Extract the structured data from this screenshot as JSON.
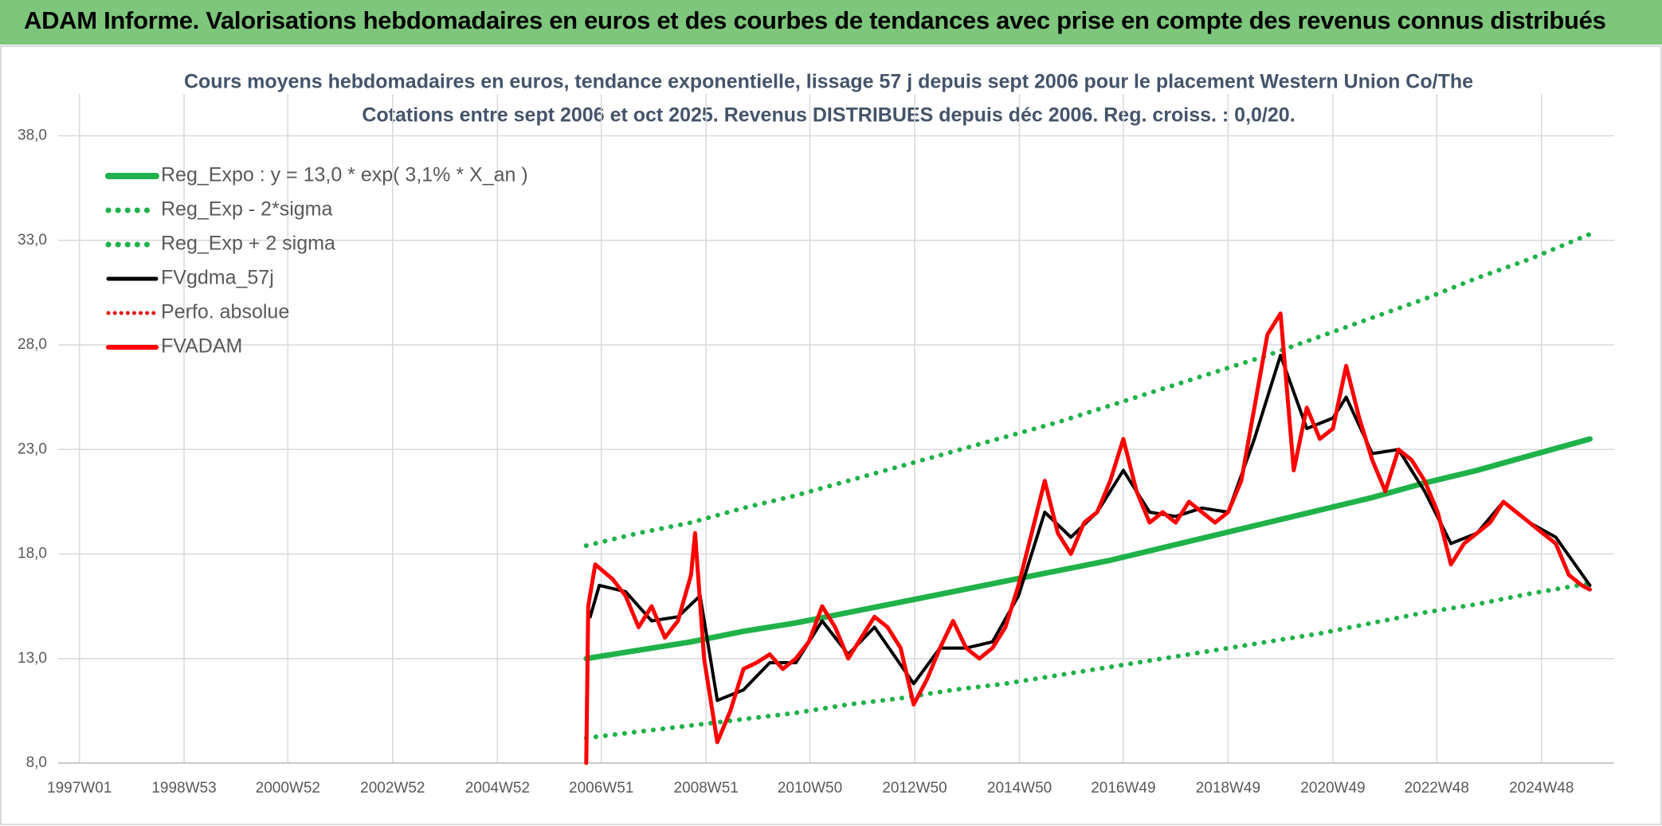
{
  "header": {
    "title": "ADAM Informe. Valorisations hebdomadaires en euros et des courbes de tendances avec prise en compte des revenus connus distribués"
  },
  "chart_data": {
    "type": "line",
    "title": "Cours moyens hebdomadaires en euros, tendance exponentielle, lissage 57 j depuis sept 2006 pour le placement Western Union Co/The",
    "subtitle": "Cotations entre sept 2006 et oct 2025. Revenus DISTRIBUES depuis déc 2006. Reg. croiss. : 0,0/20.",
    "xlim": [
      "1996W32",
      "2026W16"
    ],
    "xticks": [
      "1997W01",
      "1998W53",
      "2000W52",
      "2002W52",
      "2004W52",
      "2006W51",
      "2008W51",
      "2010W50",
      "2012W50",
      "2014W50",
      "2016W49",
      "2018W49",
      "2020W49",
      "2022W48",
      "2024W48"
    ],
    "ylim": [
      8,
      40
    ],
    "yticks": [
      {
        "value": 8,
        "label": "8,0"
      },
      {
        "value": 13,
        "label": "13,0"
      },
      {
        "value": 18,
        "label": "18,0"
      },
      {
        "value": 23,
        "label": "23,0"
      },
      {
        "value": 28,
        "label": "28,0"
      },
      {
        "value": 33,
        "label": "33,0"
      },
      {
        "value": 38,
        "label": "38,0"
      }
    ],
    "grid": true,
    "legend": "top-left",
    "series": [
      {
        "name": "Reg_Expo : y = 13,0 * exp( 3,1% *  X_an )",
        "color": "#1fb24a",
        "style": "solid",
        "width": 7,
        "x": [
          "2006W36",
          "2007W36",
          "2008W36",
          "2009W36",
          "2010W36",
          "2011W36",
          "2012W36",
          "2013W36",
          "2014W36",
          "2015W36",
          "2016W36",
          "2017W36",
          "2018W36",
          "2019W36",
          "2020W36",
          "2021W36",
          "2022W36",
          "2023W36",
          "2024W36",
          "2025W44"
        ],
        "values": [
          13.0,
          13.4,
          13.8,
          14.3,
          14.7,
          15.2,
          15.7,
          16.2,
          16.7,
          17.2,
          17.7,
          18.3,
          18.9,
          19.5,
          20.1,
          20.7,
          21.4,
          22.0,
          22.7,
          23.5
        ]
      },
      {
        "name": "Reg_Exp - 2*sigma",
        "color": "#1fb24a",
        "style": "dotted",
        "width": 6,
        "x": [
          "2006W36",
          "2007W36",
          "2008W36",
          "2009W36",
          "2010W36",
          "2011W36",
          "2012W36",
          "2013W36",
          "2014W36",
          "2015W36",
          "2016W36",
          "2017W36",
          "2018W36",
          "2019W36",
          "2020W36",
          "2021W36",
          "2022W36",
          "2023W36",
          "2024W36",
          "2025W44"
        ],
        "values": [
          9.2,
          9.5,
          9.8,
          10.1,
          10.4,
          10.8,
          11.1,
          11.5,
          11.8,
          12.2,
          12.6,
          13.0,
          13.4,
          13.8,
          14.2,
          14.7,
          15.2,
          15.6,
          16.1,
          16.6
        ]
      },
      {
        "name": "Reg_Exp + 2 sigma",
        "color": "#1fb24a",
        "style": "dotted",
        "width": 6,
        "x": [
          "2006W36",
          "2007W36",
          "2008W36",
          "2009W36",
          "2010W36",
          "2011W36",
          "2012W36",
          "2013W36",
          "2014W36",
          "2015W36",
          "2016W36",
          "2017W36",
          "2018W36",
          "2019W36",
          "2020W36",
          "2021W36",
          "2022W36",
          "2023W36",
          "2024W36",
          "2025W44"
        ],
        "values": [
          18.4,
          19.0,
          19.5,
          20.2,
          20.8,
          21.5,
          22.2,
          22.9,
          23.6,
          24.3,
          25.1,
          25.9,
          26.7,
          27.5,
          28.4,
          29.3,
          30.2,
          31.2,
          32.1,
          33.3
        ]
      },
      {
        "name": "FVgdma_57j",
        "color": "#000000",
        "style": "solid",
        "width": 4,
        "x": [
          "2006W40",
          "2006W49",
          "2007W23",
          "2007W49",
          "2008W23",
          "2008W45",
          "2009W10",
          "2009W36",
          "2010W10",
          "2010W36",
          "2011W10",
          "2011W36",
          "2012W10",
          "2012W49",
          "2013W23",
          "2013W49",
          "2014W23",
          "2014W49",
          "2015W23",
          "2015W49",
          "2016W23",
          "2016W49",
          "2017W23",
          "2017W49",
          "2018W23",
          "2018W49",
          "2019W23",
          "2019W49",
          "2020W23",
          "2020W49",
          "2021W10",
          "2021W36",
          "2022W10",
          "2022W36",
          "2023W10",
          "2023W36",
          "2024W10",
          "2024W36",
          "2025W10",
          "2025W44"
        ],
        "values": [
          15.0,
          16.5,
          16.2,
          14.8,
          15.0,
          16.0,
          11.0,
          11.5,
          12.8,
          12.8,
          14.8,
          13.2,
          14.5,
          11.8,
          13.5,
          13.5,
          13.8,
          16.0,
          20.0,
          18.8,
          20.0,
          22.0,
          20.0,
          19.8,
          20.2,
          20.0,
          23.5,
          27.5,
          24.0,
          24.5,
          25.5,
          22.8,
          23.0,
          21.0,
          18.5,
          19.0,
          20.5,
          19.5,
          18.8,
          16.5
        ]
      },
      {
        "name": "Perfo. absolue",
        "color": "#e31a1c",
        "style": "dotted",
        "width": 4
      },
      {
        "name": "FVADAM",
        "color": "#ff0000",
        "style": "solid",
        "width": 5,
        "x": [
          "2006W36",
          "2006W38",
          "2006W45",
          "2007W10",
          "2007W23",
          "2007W36",
          "2007W49",
          "2008W10",
          "2008W23",
          "2008W36",
          "2008W40",
          "2008W49",
          "2009W10",
          "2009W23",
          "2009W36",
          "2009W49",
          "2010W10",
          "2010W23",
          "2010W36",
          "2010W49",
          "2011W10",
          "2011W23",
          "2011W36",
          "2011W49",
          "2012W10",
          "2012W23",
          "2012W36",
          "2012W49",
          "2013W10",
          "2013W23",
          "2013W36",
          "2013W49",
          "2014W10",
          "2014W23",
          "2014W36",
          "2014W49",
          "2015W10",
          "2015W23",
          "2015W36",
          "2015W49",
          "2016W10",
          "2016W23",
          "2016W36",
          "2016W49",
          "2017W10",
          "2017W23",
          "2017W36",
          "2017W49",
          "2018W10",
          "2018W23",
          "2018W36",
          "2018W49",
          "2019W10",
          "2019W23",
          "2019W36",
          "2019W49",
          "2020W10",
          "2020W23",
          "2020W36",
          "2020W49",
          "2021W10",
          "2021W23",
          "2021W36",
          "2021W49",
          "2022W10",
          "2022W23",
          "2022W36",
          "2022W49",
          "2023W10",
          "2023W23",
          "2023W36",
          "2023W49",
          "2024W10",
          "2024W23",
          "2024W36",
          "2024W49",
          "2025W10",
          "2025W23",
          "2025W36",
          "2025W44"
        ],
        "values": [
          8.0,
          15.5,
          17.5,
          16.8,
          16.0,
          14.5,
          15.5,
          14.0,
          14.8,
          17.0,
          19.0,
          13.0,
          9.0,
          10.5,
          12.5,
          12.8,
          13.2,
          12.5,
          13.0,
          13.8,
          15.5,
          14.5,
          13.0,
          14.0,
          15.0,
          14.5,
          13.5,
          10.8,
          12.0,
          13.5,
          14.8,
          13.5,
          13.0,
          13.5,
          14.5,
          16.5,
          19.0,
          21.5,
          19.0,
          18.0,
          19.5,
          20.0,
          21.5,
          23.5,
          21.0,
          19.5,
          20.0,
          19.5,
          20.5,
          20.0,
          19.5,
          20.0,
          21.5,
          25.0,
          28.5,
          29.5,
          22.0,
          25.0,
          23.5,
          24.0,
          27.0,
          24.5,
          22.5,
          21.0,
          23.0,
          22.5,
          21.5,
          20.0,
          17.5,
          18.5,
          19.0,
          19.5,
          20.5,
          20.0,
          19.5,
          19.0,
          18.5,
          17.0,
          16.5,
          16.3
        ]
      }
    ]
  }
}
